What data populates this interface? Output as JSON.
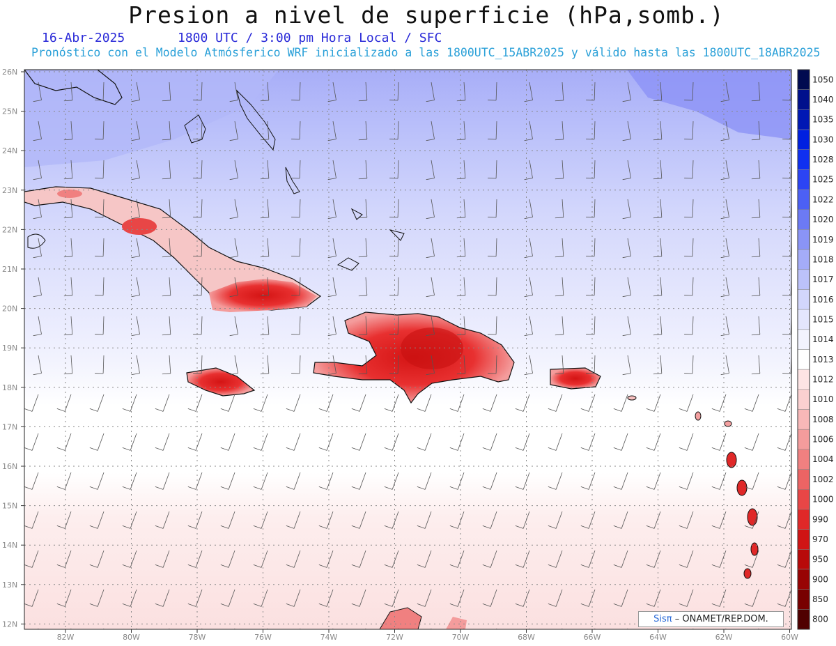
{
  "title": "Presion a nivel de superficie (hPa,somb.)",
  "date": "16-Abr-2025",
  "valid_time": "1800 UTC / 3:00 pm Hora Local / SFC",
  "forecast": "Pronóstico con el Modelo Atmósferico WRF inicializado a las 1800UTC_15ABR2025 y válido hasta las  1800UTC_18ABR2025",
  "credit": {
    "logo": "Sisπ",
    "org": "– ONAMET/REP.DOM."
  },
  "lat_labels": [
    "26N",
    "25N",
    "24N",
    "23N",
    "22N",
    "21N",
    "20N",
    "19N",
    "18N",
    "17N",
    "16N",
    "15N",
    "14N",
    "13N",
    "12N"
  ],
  "lon_labels": [
    "82W",
    "80W",
    "78W",
    "76W",
    "74W",
    "72W",
    "70W",
    "68W",
    "66W",
    "64W",
    "62W",
    "60W"
  ],
  "colorbar": {
    "labels": [
      "1050",
      "1040",
      "1035",
      "1030",
      "1028",
      "1025",
      "1022",
      "1020",
      "1019",
      "1018",
      "1017",
      "1016",
      "1015",
      "1014",
      "1013",
      "1012",
      "1010",
      "1008",
      "1006",
      "1004",
      "1002",
      "1000",
      "990",
      "970",
      "950",
      "900",
      "850",
      "800"
    ],
    "colors": [
      "#000a50",
      "#00108c",
      "#0018b4",
      "#0020e0",
      "#1030f0",
      "#2c44f4",
      "#4c60f4",
      "#6c7af4",
      "#8a94f6",
      "#a4acf8",
      "#bcc2fa",
      "#d2d6fc",
      "#e4e6fd",
      "#f2f3fe",
      "#ffffff",
      "#fde4e4",
      "#fbd0d0",
      "#f8b8b8",
      "#f49c9c",
      "#f08080",
      "#ec6464",
      "#e84646",
      "#e02828",
      "#d01414",
      "#b80a0a",
      "#980404",
      "#780000",
      "#500000"
    ]
  }
}
